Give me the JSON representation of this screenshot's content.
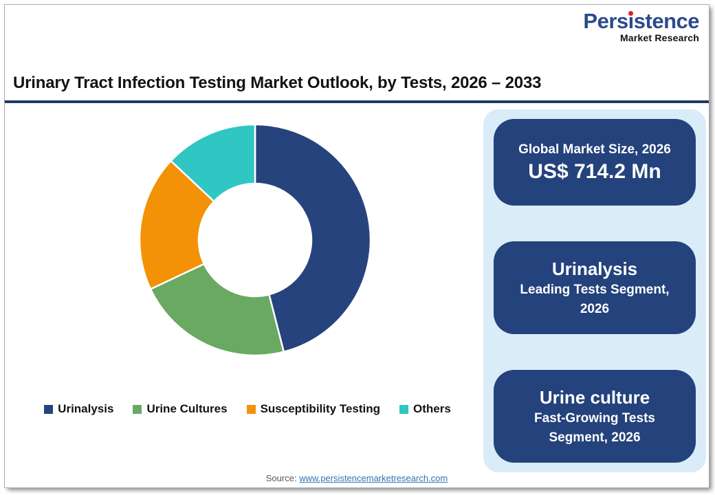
{
  "logo": {
    "name_part1": "Pers",
    "name_i": "i",
    "name_part2": "stence",
    "tagline": "Market Research",
    "brand_blue": "#2b4a8c",
    "dot_red": "#e2231a"
  },
  "title": "Urinary Tract Infection Testing Market Outlook, by Tests, 2026 – 2033",
  "chart_data": {
    "type": "pie",
    "subtype": "donut",
    "categories": [
      "Urinalysis",
      "Urine Cultures",
      "Susceptibility Testing",
      "Others"
    ],
    "values": [
      46,
      22,
      19,
      13
    ],
    "unit": "percent (estimated from arc angles)",
    "colors": [
      "#27437d",
      "#6aa962",
      "#f39207",
      "#2fc6c3"
    ],
    "start_angle_deg": 0,
    "direction": "clockwise",
    "inner_radius_ratio": 0.49,
    "slice_gap_color": "#ffffff",
    "legend_position": "bottom",
    "title": "Urinary Tract Infection Testing Market Outlook, by Tests, 2026 – 2033"
  },
  "panel": {
    "background": "#d9ecf8",
    "card_background": "#24427c",
    "cards": [
      {
        "title": "Global Market Size, 2026",
        "value": "US$ 714.2 Mn"
      },
      {
        "title": "Urinalysis",
        "subtitle": "Leading Tests Segment, 2026"
      },
      {
        "title": "Urine culture",
        "subtitle": "Fast-Growing Tests Segment, 2026"
      }
    ]
  },
  "footer": {
    "source_label": "Source:",
    "source_link": "www.persistencemarketresearch.com"
  }
}
